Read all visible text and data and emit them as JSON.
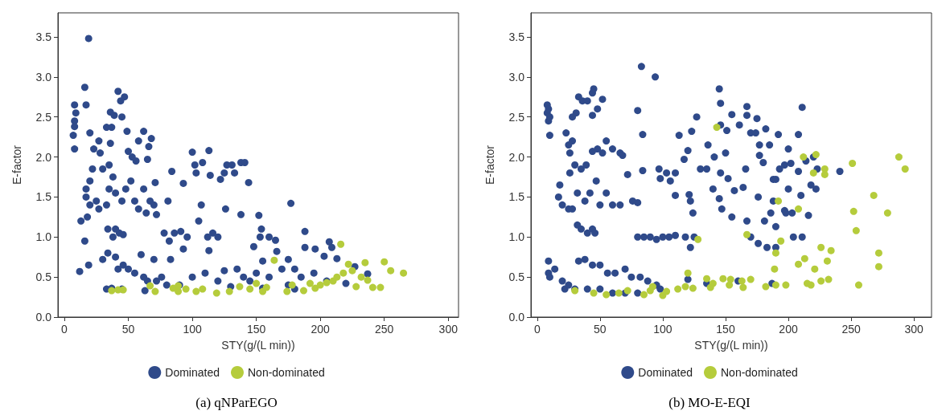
{
  "chart_data": [
    {
      "type": "scatter",
      "title": "(a) qNParEGO",
      "xlabel": "STY(g/(L min))",
      "ylabel": "E-factor",
      "xlim": [
        -5,
        308
      ],
      "xticks": [
        0,
        50,
        100,
        150,
        200,
        250,
        300
      ],
      "ylim": [
        0,
        3.8
      ],
      "yticks": [
        {
          "value": 0,
          "label": "0.0"
        },
        0.5,
        {
          "value": 1,
          "label": "1.0"
        },
        1.5,
        {
          "value": 2,
          "label": "2.0"
        },
        2.5,
        {
          "value": 3,
          "label": "3.0"
        },
        3.5
      ],
      "grid": false,
      "legend": "bottom",
      "marker": "circle",
      "series": [
        {
          "name": "Dominated",
          "color": "#2f4a8a",
          "x": [
            19,
            16,
            8,
            9,
            8,
            8,
            7,
            8,
            17,
            12,
            19,
            16,
            13,
            18,
            17,
            17,
            20,
            22,
            20,
            23,
            27,
            28,
            30,
            25,
            20,
            27,
            33,
            36,
            37,
            36,
            39,
            42,
            44,
            47,
            45,
            49,
            50,
            53,
            56,
            58,
            62,
            66,
            68,
            65,
            35,
            38,
            40,
            35,
            33,
            45,
            48,
            52,
            55,
            58,
            62,
            64,
            67,
            70,
            72,
            71,
            34,
            38,
            40,
            43,
            46,
            30,
            34,
            40,
            42,
            46,
            50,
            55,
            60,
            62,
            65,
            70,
            72,
            76,
            80,
            83,
            84,
            93,
            81,
            78,
            82,
            86,
            91,
            93,
            96,
            100,
            102,
            103,
            105,
            107,
            108,
            113,
            114,
            113,
            112,
            116,
            120,
            122,
            125,
            127,
            131,
            133,
            138,
            141,
            144,
            126,
            138,
            152,
            154,
            153,
            148,
            160,
            165,
            166,
            177,
            188,
            188,
            196,
            207,
            209,
            203,
            213,
            227,
            237,
            100,
            110,
            120,
            125,
            135,
            140,
            145,
            150,
            155,
            160,
            170,
            175,
            180,
            185,
            195,
            205,
            220,
            90,
            63,
            33,
            37,
            45,
            130,
            155,
            175,
            180
          ],
          "values": [
            3.48,
            2.87,
            2.65,
            2.55,
            2.45,
            2.38,
            2.27,
            2.1,
            2.65,
            0.57,
            0.65,
            0.95,
            1.2,
            1.25,
            1.5,
            1.6,
            1.7,
            1.85,
            2.3,
            2.1,
            2.2,
            2.05,
            1.85,
            1.45,
            1.4,
            1.35,
            2.37,
            2.17,
            2.37,
            2.56,
            2.52,
            2.82,
            2.7,
            2.75,
            2.5,
            2.32,
            2.07,
            2.0,
            1.95,
            2.2,
            2.32,
            2.13,
            2.23,
            1.97,
            1.9,
            1.75,
            1.55,
            1.6,
            1.4,
            1.45,
            1.6,
            1.7,
            1.45,
            1.35,
            1.6,
            1.3,
            1.45,
            1.4,
            1.28,
            1.68,
            1.1,
            1.0,
            1.1,
            1.05,
            1.03,
            0.72,
            0.8,
            0.75,
            0.6,
            0.65,
            0.6,
            0.55,
            0.78,
            0.5,
            0.45,
            0.72,
            0.45,
            0.5,
            0.4,
            0.72,
            1.82,
            1.67,
            1.45,
            1.05,
            0.95,
            1.05,
            1.07,
            0.85,
            1.0,
            2.06,
            1.9,
            1.8,
            1.2,
            1.4,
            1.93,
            2.08,
            1.77,
            0.83,
            1.0,
            1.05,
            1.0,
            1.72,
            1.8,
            1.9,
            1.9,
            1.8,
            1.93,
            1.93,
            1.68,
            1.35,
            1.28,
            1.27,
            1.1,
            1.0,
            0.88,
            1.0,
            0.96,
            0.82,
            1.42,
            1.07,
            0.87,
            0.85,
            0.94,
            0.87,
            0.76,
            0.73,
            0.63,
            0.54,
            0.5,
            0.55,
            0.45,
            0.58,
            0.6,
            0.5,
            0.45,
            0.55,
            0.7,
            0.5,
            0.6,
            0.72,
            0.6,
            0.5,
            0.55,
            0.45,
            0.42,
            0.4,
            0.33,
            0.35,
            0.36,
            0.35,
            0.38,
            0.36,
            0.4,
            0.35
          ]
        },
        {
          "name": "Non-dominated",
          "color": "#b5cc3c",
          "x": [
            37,
            42,
            46,
            67,
            71,
            85,
            89,
            89,
            95,
            103,
            108,
            119,
            129,
            137,
            145,
            150,
            155,
            158,
            164,
            174,
            178,
            187,
            192,
            196,
            200,
            205,
            210,
            213,
            216,
            218,
            222,
            225,
            228,
            232,
            235,
            237,
            241,
            247,
            250,
            255,
            265
          ],
          "values": [
            0.33,
            0.34,
            0.34,
            0.39,
            0.32,
            0.36,
            0.32,
            0.39,
            0.35,
            0.32,
            0.35,
            0.3,
            0.32,
            0.38,
            0.35,
            0.42,
            0.32,
            0.37,
            0.71,
            0.32,
            0.4,
            0.33,
            0.42,
            0.36,
            0.4,
            0.43,
            0.45,
            0.5,
            0.91,
            0.55,
            0.66,
            0.58,
            0.38,
            0.5,
            0.68,
            0.46,
            0.37,
            0.37,
            0.69,
            0.58,
            0.55
          ]
        }
      ]
    },
    {
      "type": "scatter",
      "title": "(b) MO-E-EQI",
      "xlabel": "STY(g/(L min))",
      "ylabel": "E-factor",
      "xlim": [
        -5,
        314
      ],
      "xticks": [
        0,
        50,
        100,
        150,
        200,
        250,
        300
      ],
      "ylim": [
        0,
        3.8
      ],
      "yticks": [
        {
          "value": 0,
          "label": "0.0"
        },
        0.5,
        {
          "value": 1,
          "label": "1.0"
        },
        1.5,
        {
          "value": 2,
          "label": "2.0"
        },
        2.5,
        {
          "value": 3,
          "label": "3.0"
        },
        3.5
      ],
      "grid": false,
      "legend": "bottom",
      "marker": "circle",
      "series": [
        {
          "name": "Dominated",
          "color": "#2f4a8a",
          "x": [
            8,
            8,
            9,
            10,
            10,
            9,
            9,
            9,
            10,
            14,
            20,
            22,
            25,
            23,
            25,
            26,
            28,
            28,
            31,
            33,
            36,
            40,
            44,
            45,
            48,
            52,
            44,
            26,
            30,
            35,
            39,
            44,
            48,
            52,
            55,
            60,
            66,
            68,
            18,
            17,
            20,
            25,
            28,
            32,
            38,
            42,
            47,
            50,
            55,
            60,
            66,
            72,
            76,
            80,
            32,
            35,
            40,
            44,
            46,
            33,
            38,
            44,
            50,
            56,
            62,
            70,
            75,
            82,
            88,
            30,
            40,
            50,
            60,
            70,
            80,
            95,
            98,
            80,
            83,
            84,
            84,
            94,
            97,
            98,
            103,
            106,
            110,
            110,
            113,
            117,
            120,
            121,
            122,
            123,
            124,
            127,
            130,
            135,
            136,
            140,
            141,
            145,
            146,
            146,
            145,
            146,
            147,
            150,
            151,
            152,
            155,
            155,
            157,
            161,
            164,
            166,
            167,
            167,
            167,
            170,
            170,
            174,
            175,
            176,
            177,
            177,
            176,
            180,
            181,
            182,
            183,
            185,
            186,
            188,
            188,
            190,
            190,
            190,
            192,
            193,
            197,
            197,
            198,
            200,
            200,
            202,
            203,
            204,
            208,
            208,
            210,
            211,
            211,
            214,
            216,
            218,
            220,
            222,
            223,
            241,
            80,
            85,
            90,
            95,
            100,
            105,
            110,
            118,
            122,
            125,
            120,
            135,
            160,
            187
          ],
          "values": [
            2.65,
            2.55,
            2.45,
            2.5,
            2.27,
            2.6,
            0.7,
            0.55,
            0.5,
            0.6,
            0.45,
            0.35,
            0.4,
            2.3,
            2.15,
            2.05,
            2.2,
            2.5,
            2.55,
            2.75,
            2.7,
            2.7,
            2.8,
            2.85,
            2.6,
            2.72,
            2.52,
            1.8,
            1.9,
            1.85,
            1.9,
            2.07,
            2.1,
            2.05,
            2.2,
            2.1,
            2.05,
            2.02,
            1.65,
            1.5,
            1.4,
            1.35,
            1.35,
            1.55,
            1.45,
            1.55,
            1.7,
            1.4,
            1.55,
            1.4,
            1.4,
            1.78,
            1.45,
            1.43,
            1.15,
            1.1,
            1.05,
            1.1,
            1.05,
            0.7,
            0.72,
            0.65,
            0.65,
            0.55,
            0.55,
            0.6,
            0.5,
            0.5,
            0.45,
            0.35,
            0.35,
            0.35,
            0.3,
            0.3,
            0.3,
            0.4,
            0.35,
            2.58,
            3.13,
            2.28,
            1.83,
            3.0,
            1.85,
            1.73,
            1.8,
            1.7,
            1.52,
            1.8,
            2.27,
            1.97,
            2.08,
            1.53,
            1.45,
            2.32,
            1.3,
            2.5,
            1.85,
            1.85,
            2.15,
            1.6,
            2.0,
            1.48,
            1.8,
            2.4,
            2.85,
            2.67,
            1.35,
            2.05,
            2.33,
            1.73,
            2.53,
            1.25,
            1.58,
            2.4,
            1.62,
            1.85,
            2.52,
            2.63,
            1.2,
            1.0,
            2.3,
            2.3,
            2.48,
            1.5,
            2.15,
            2.02,
            0.92,
            1.93,
            1.2,
            2.35,
            0.87,
            2.15,
            1.3,
            1.72,
            1.45,
            1.72,
            1.13,
            0.87,
            2.28,
            1.85,
            1.9,
            1.33,
            1.3,
            2.1,
            1.6,
            1.92,
            1.3,
            1.0,
            2.28,
            1.82,
            1.52,
            1.0,
            2.62,
            1.95,
            1.27,
            1.65,
            2.0,
            1.6,
            1.85,
            1.82,
            1.0,
            1.0,
            1.0,
            0.97,
            1.0,
            1.0,
            1.02,
            1.0,
            0.87,
            1.0,
            0.47,
            0.42,
            0.45,
            0.42
          ]
        },
        {
          "name": "Non-dominated",
          "color": "#b5cc3c",
          "x": [
            30,
            45,
            55,
            65,
            72,
            85,
            90,
            92,
            100,
            103,
            112,
            118,
            120,
            124,
            128,
            135,
            138,
            140,
            143,
            148,
            153,
            154,
            163,
            164,
            170,
            167,
            182,
            189,
            190,
            190,
            192,
            194,
            198,
            208,
            208,
            212,
            213,
            215,
            218,
            220,
            221,
            222,
            226,
            226,
            229,
            229,
            231,
            232,
            234,
            251,
            252,
            254,
            256,
            268,
            272,
            272,
            279,
            288,
            293
          ],
          "values": [
            0.33,
            0.3,
            0.28,
            0.3,
            0.33,
            0.28,
            0.33,
            0.38,
            0.27,
            0.32,
            0.35,
            0.38,
            0.55,
            0.36,
            0.97,
            0.48,
            0.37,
            0.42,
            2.37,
            0.48,
            0.4,
            0.47,
            0.45,
            0.37,
            0.47,
            1.03,
            0.38,
            0.6,
            0.8,
            0.4,
            1.45,
            0.95,
            0.4,
            1.35,
            0.66,
            2.0,
            0.73,
            0.42,
            0.4,
            1.8,
            0.6,
            2.03,
            0.87,
            0.45,
            1.78,
            1.85,
            0.7,
            0.47,
            0.83,
            1.92,
            1.32,
            1.08,
            0.4,
            1.52,
            0.8,
            0.63,
            1.3,
            2.0,
            1.85
          ]
        }
      ]
    }
  ]
}
